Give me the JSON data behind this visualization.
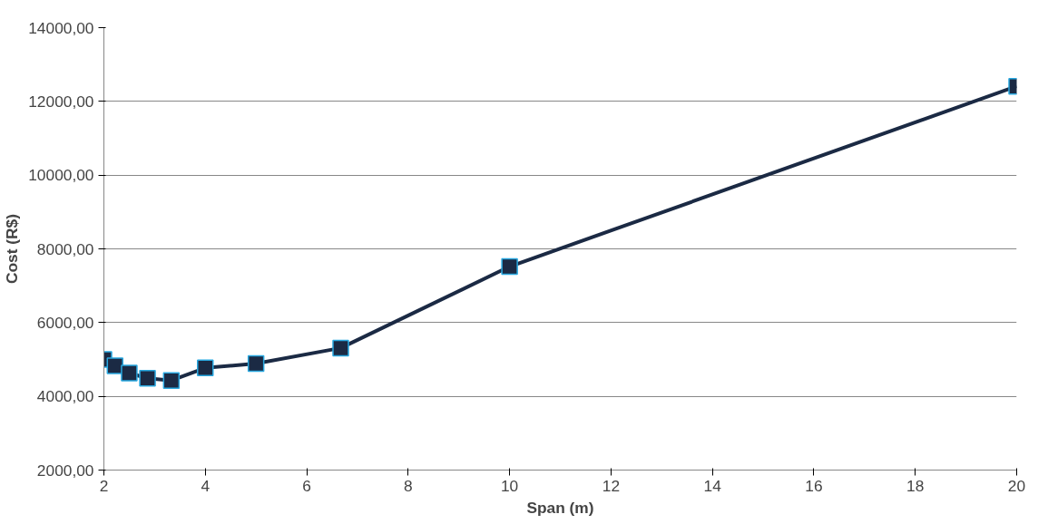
{
  "chart_data": {
    "type": "line",
    "xlabel": "Span (m)",
    "ylabel": "Cost (R$)",
    "x": [
      2,
      2.22,
      2.5,
      2.86,
      3.33,
      4,
      5,
      6.67,
      10,
      20
    ],
    "series": [
      {
        "color": "#1b2a44",
        "values": [
          5000,
          4830,
          4630,
          4490,
          4430,
          4770,
          4890,
          5310,
          7520,
          12410
        ]
      }
    ],
    "xlim": [
      2,
      20
    ],
    "xticks": [
      2,
      4,
      6,
      8,
      10,
      12,
      14,
      16,
      18,
      20
    ],
    "ylim": [
      2000,
      14000
    ],
    "yticks": [
      {
        "value": 2000,
        "label": "2000,00"
      },
      {
        "value": 4000,
        "label": "4000,00"
      },
      {
        "value": 6000,
        "label": "6000,00"
      },
      {
        "value": 8000,
        "label": "8000,00"
      },
      {
        "value": 10000,
        "label": "10000,00"
      },
      {
        "value": 12000,
        "label": "12000,00"
      },
      {
        "value": 14000,
        "label": "14000,00"
      }
    ],
    "grid": "y",
    "marker": "square",
    "line_style": "solid"
  }
}
